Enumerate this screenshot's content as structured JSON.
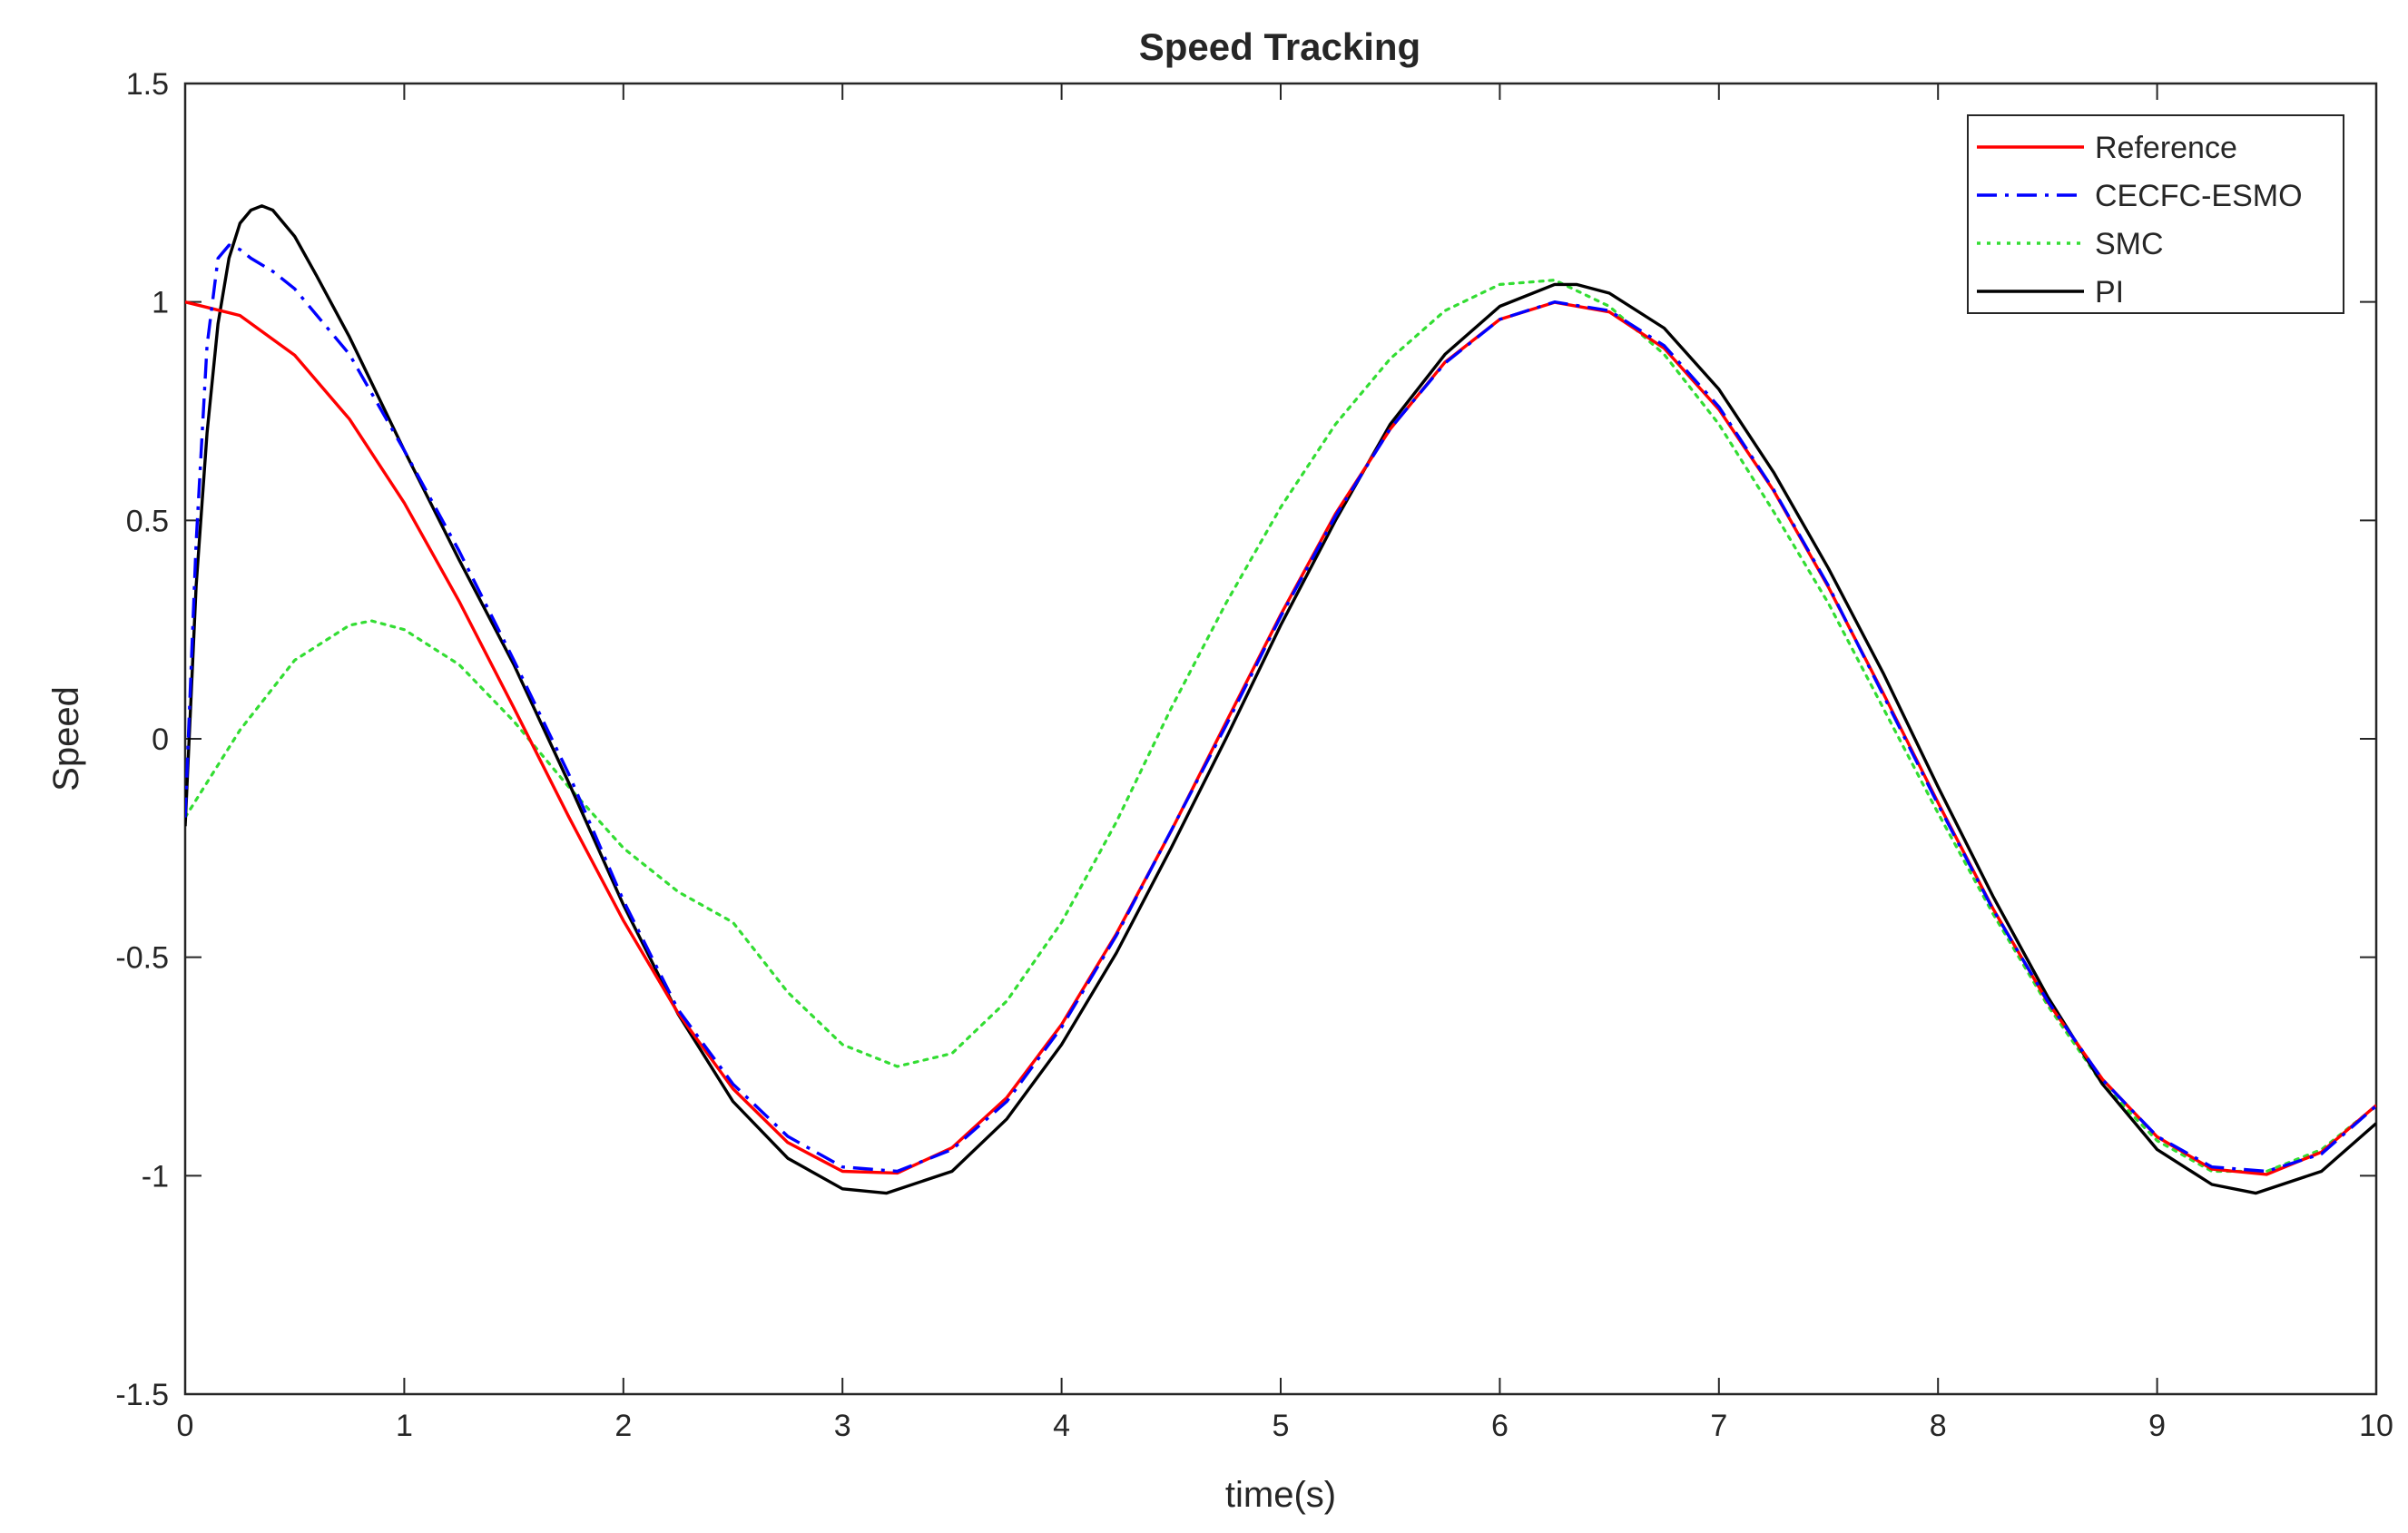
{
  "chart_data": {
    "type": "line",
    "title": "Speed Tracking",
    "xlabel": "time(s)",
    "ylabel": "Speed",
    "xlim": [
      0,
      10
    ],
    "ylim": [
      -1.5,
      1.5
    ],
    "xticks": [
      0,
      1,
      2,
      3,
      4,
      5,
      6,
      7,
      8,
      9,
      10
    ],
    "yticks": [
      -1.5,
      -1,
      -0.5,
      0,
      0.5,
      1,
      1.5
    ],
    "xtick_labels": [
      "0",
      "1",
      "2",
      "3",
      "4",
      "5",
      "6",
      "7",
      "8",
      "9",
      "10"
    ],
    "ytick_labels": [
      "-1.5",
      "-1",
      "-0.5",
      "0",
      "0.5",
      "1",
      "1.5"
    ],
    "grid": false,
    "legend_position": "top-right",
    "series": [
      {
        "name": "Reference",
        "color": "#ff0000",
        "line_style": "solid",
        "x": [
          0,
          0.25,
          0.5,
          0.75,
          1.0,
          1.25,
          1.5,
          1.75,
          2.0,
          2.25,
          2.5,
          2.75,
          3.0,
          3.25,
          3.5,
          3.75,
          4.0,
          4.25,
          4.5,
          4.75,
          5.0,
          5.25,
          5.5,
          5.75,
          6.0,
          6.25,
          6.5,
          6.75,
          7.0,
          7.25,
          7.5,
          7.75,
          8.0,
          8.25,
          8.5,
          8.75,
          9.0,
          9.25,
          9.5,
          9.75,
          10.0
        ],
        "y": [
          1.0,
          0.969,
          0.878,
          0.732,
          0.54,
          0.315,
          0.071,
          -0.178,
          -0.416,
          -0.628,
          -0.801,
          -0.924,
          -0.99,
          -0.994,
          -0.936,
          -0.821,
          -0.654,
          -0.446,
          -0.211,
          0.037,
          0.284,
          0.515,
          0.709,
          0.862,
          0.96,
          0.999,
          0.977,
          0.894,
          0.754,
          0.568,
          0.347,
          0.104,
          -0.146,
          -0.388,
          -0.602,
          -0.779,
          -0.911,
          -0.985,
          -0.997,
          -0.946,
          -0.839
        ]
      },
      {
        "name": "CECFC-ESMO",
        "color": "#0000ff",
        "line_style": "dash-dot",
        "x": [
          0,
          0.05,
          0.1,
          0.15,
          0.2,
          0.25,
          0.3,
          0.4,
          0.5,
          0.6,
          0.75,
          1.0,
          1.25,
          1.5,
          1.75,
          2.0,
          2.25,
          2.5,
          2.75,
          3.0,
          3.25,
          3.5,
          3.75,
          4.0,
          4.25,
          4.5,
          4.75,
          5.0,
          5.25,
          5.5,
          5.75,
          6.0,
          6.25,
          6.5,
          6.75,
          7.0,
          7.25,
          7.5,
          7.75,
          8.0,
          8.25,
          8.5,
          8.75,
          9.0,
          9.25,
          9.5,
          9.75,
          10.0
        ],
        "y": [
          -0.18,
          0.45,
          0.9,
          1.1,
          1.13,
          1.12,
          1.1,
          1.07,
          1.03,
          0.97,
          0.88,
          0.66,
          0.43,
          0.18,
          -0.08,
          -0.37,
          -0.62,
          -0.79,
          -0.91,
          -0.98,
          -0.99,
          -0.94,
          -0.83,
          -0.66,
          -0.45,
          -0.21,
          0.03,
          0.28,
          0.51,
          0.71,
          0.86,
          0.96,
          1.0,
          0.98,
          0.9,
          0.76,
          0.57,
          0.35,
          0.1,
          -0.15,
          -0.39,
          -0.6,
          -0.78,
          -0.91,
          -0.98,
          -0.99,
          -0.95,
          -0.84
        ]
      },
      {
        "name": "SMC",
        "color": "#33dd33",
        "line_style": "dotted",
        "x": [
          0,
          0.1,
          0.25,
          0.5,
          0.75,
          0.85,
          1.0,
          1.25,
          1.5,
          1.75,
          2.0,
          2.25,
          2.5,
          2.75,
          3.0,
          3.25,
          3.5,
          3.75,
          4.0,
          4.25,
          4.5,
          4.75,
          5.0,
          5.25,
          5.5,
          5.75,
          6.0,
          6.25,
          6.5,
          6.75,
          7.0,
          7.25,
          7.5,
          7.75,
          8.0,
          8.25,
          8.5,
          8.75,
          9.0,
          9.25,
          9.5,
          9.75,
          10.0
        ],
        "y": [
          -0.18,
          -0.1,
          0.02,
          0.18,
          0.26,
          0.27,
          0.25,
          0.17,
          0.04,
          -0.11,
          -0.25,
          -0.35,
          -0.42,
          -0.58,
          -0.7,
          -0.75,
          -0.72,
          -0.6,
          -0.42,
          -0.19,
          0.07,
          0.31,
          0.53,
          0.72,
          0.87,
          0.98,
          1.04,
          1.05,
          0.99,
          0.88,
          0.72,
          0.52,
          0.31,
          0.07,
          -0.17,
          -0.4,
          -0.61,
          -0.79,
          -0.92,
          -0.99,
          -0.99,
          -0.94,
          -0.84
        ]
      },
      {
        "name": "PI",
        "color": "#000000",
        "line_style": "solid",
        "x": [
          0,
          0.05,
          0.1,
          0.15,
          0.2,
          0.25,
          0.3,
          0.35,
          0.4,
          0.5,
          0.6,
          0.75,
          1.0,
          1.25,
          1.5,
          1.75,
          2.0,
          2.25,
          2.5,
          2.75,
          3.0,
          3.2,
          3.5,
          3.75,
          4.0,
          4.25,
          4.5,
          4.75,
          5.0,
          5.25,
          5.5,
          5.75,
          6.0,
          6.25,
          6.35,
          6.5,
          6.75,
          7.0,
          7.25,
          7.5,
          7.75,
          8.0,
          8.25,
          8.5,
          8.75,
          9.0,
          9.25,
          9.45,
          9.75,
          10.0
        ],
        "y": [
          -0.2,
          0.35,
          0.7,
          0.95,
          1.1,
          1.18,
          1.21,
          1.22,
          1.21,
          1.15,
          1.06,
          0.92,
          0.66,
          0.41,
          0.17,
          -0.1,
          -0.38,
          -0.63,
          -0.83,
          -0.96,
          -1.03,
          -1.04,
          -0.99,
          -0.87,
          -0.7,
          -0.49,
          -0.25,
          0.0,
          0.26,
          0.5,
          0.72,
          0.88,
          0.99,
          1.04,
          1.04,
          1.02,
          0.94,
          0.8,
          0.61,
          0.39,
          0.15,
          -0.11,
          -0.36,
          -0.59,
          -0.79,
          -0.94,
          -1.02,
          -1.04,
          -0.99,
          -0.88
        ]
      }
    ]
  }
}
